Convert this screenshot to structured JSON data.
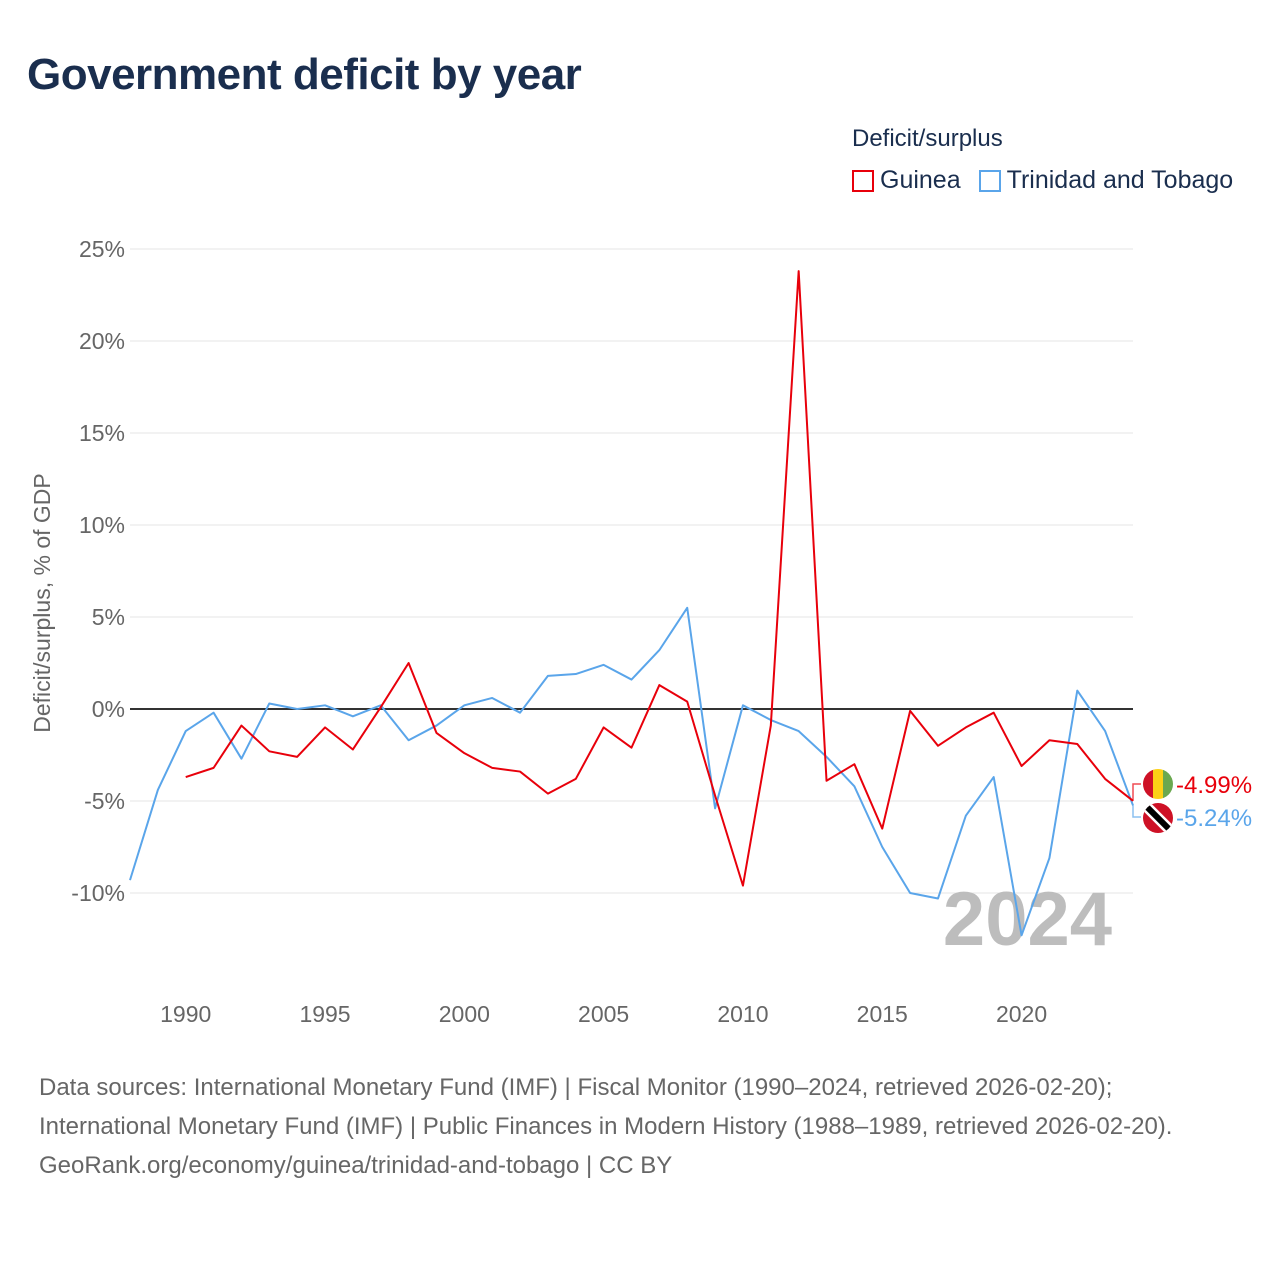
{
  "title": "Government deficit by year",
  "legend": {
    "title": "Deficit/surplus",
    "items": [
      {
        "name": "Guinea",
        "color": "#e8000b"
      },
      {
        "name": "Trinidad and Tobago",
        "color": "#5aa5ea"
      }
    ]
  },
  "chart_data": {
    "type": "line",
    "title": "Government deficit by year",
    "ylabel": "Deficit/surplus, % of GDP",
    "xlabel": "",
    "xlim": [
      1988,
      2024
    ],
    "ylim": [
      -14,
      26
    ],
    "yticks": [
      -10,
      -5,
      0,
      5,
      10,
      15,
      20,
      25
    ],
    "ytick_labels": [
      "-10%",
      "-5%",
      "0%",
      "5%",
      "10%",
      "15%",
      "20%",
      "25%"
    ],
    "xticks": [
      1990,
      1995,
      2000,
      2005,
      2010,
      2015,
      2020
    ],
    "xtick_labels": [
      "1990",
      "1995",
      "2000",
      "2005",
      "2010",
      "2015",
      "2020"
    ],
    "grid": true,
    "legend_position": "top-right",
    "watermark_year": "2024",
    "series": [
      {
        "name": "Guinea",
        "color": "#e8000b",
        "end_label": "-4.99%",
        "x": [
          1990,
          1991,
          1992,
          1993,
          1994,
          1995,
          1996,
          1997,
          1998,
          1999,
          2000,
          2001,
          2002,
          2003,
          2004,
          2005,
          2006,
          2007,
          2008,
          2009,
          2010,
          2011,
          2012,
          2013,
          2014,
          2015,
          2016,
          2017,
          2018,
          2019,
          2020,
          2021,
          2022,
          2023,
          2024
        ],
        "values": [
          -3.7,
          -3.2,
          -0.9,
          -2.3,
          -2.6,
          -1.0,
          -2.2,
          0.1,
          2.5,
          -1.3,
          -2.4,
          -3.2,
          -3.4,
          -4.6,
          -3.8,
          -1.0,
          -2.1,
          1.3,
          0.4,
          -4.7,
          -9.6,
          -0.9,
          23.8,
          -3.9,
          -3.0,
          -6.5,
          -0.1,
          -2.0,
          -1.0,
          -0.2,
          -3.1,
          -1.7,
          -1.9,
          -3.8,
          -4.99
        ]
      },
      {
        "name": "Trinidad and Tobago",
        "color": "#5aa5ea",
        "end_label": "-5.24%",
        "x": [
          1988,
          1989,
          1990,
          1991,
          1992,
          1993,
          1994,
          1995,
          1996,
          1997,
          1998,
          1999,
          2000,
          2001,
          2002,
          2003,
          2004,
          2005,
          2006,
          2007,
          2008,
          2009,
          2010,
          2011,
          2012,
          2013,
          2014,
          2015,
          2016,
          2017,
          2018,
          2019,
          2020,
          2021,
          2022,
          2023,
          2024
        ],
        "values": [
          -9.3,
          -4.4,
          -1.2,
          -0.2,
          -2.7,
          0.3,
          0.0,
          0.2,
          -0.4,
          0.2,
          -1.7,
          -0.9,
          0.2,
          0.6,
          -0.2,
          1.8,
          1.9,
          2.4,
          1.6,
          3.2,
          5.5,
          -5.4,
          0.2,
          -0.6,
          -1.2,
          -2.6,
          -4.2,
          -7.5,
          -10.0,
          -10.3,
          -5.8,
          -3.7,
          -12.3,
          -8.1,
          1.0,
          -1.2,
          -5.24
        ]
      }
    ]
  },
  "footer": {
    "sources": "Data sources: International Monetary Fund (IMF) | Fiscal Monitor (1990–2024, retrieved 2026-02-20); International Monetary Fund (IMF) | Public Finances in Modern History (1988–1989, retrieved 2026-02-20).",
    "credit": "GeoRank.org/economy/guinea/trinidad-and-tobago | CC BY"
  }
}
